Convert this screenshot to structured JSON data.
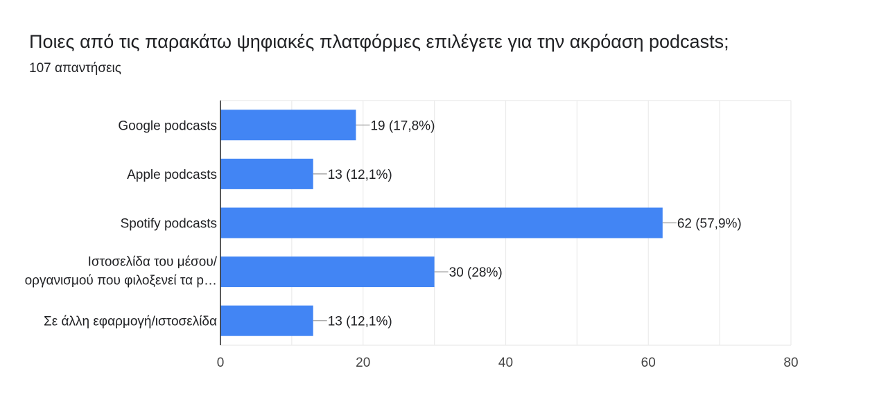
{
  "form": {
    "question_title": "Ποιες από τις παρακάτω ψηφιακές πλατφόρμες επιλέγετε για την ακρόαση podcasts;",
    "response_count": "107 απαντήσεις"
  },
  "chart_data": {
    "type": "bar",
    "orientation": "horizontal",
    "categories": [
      [
        "Google podcasts"
      ],
      [
        "Apple podcasts"
      ],
      [
        "Spotify podcasts"
      ],
      [
        "Ιστοσελίδα του μέσου/",
        "οργανισμού που φιλοξενεί τα p…"
      ],
      [
        "Σε άλλη εφαρμογή/ιστοσελίδα"
      ]
    ],
    "values": [
      19,
      13,
      62,
      30,
      13
    ],
    "data_labels": [
      "19 (17,8%)",
      "13 (12,1%)",
      "62 (57,9%)",
      "30 (28%)",
      "13 (12,1%)"
    ],
    "xlim": [
      0,
      80
    ],
    "x_ticks": [
      0,
      20,
      40,
      60,
      80
    ],
    "grid": true,
    "colors": {
      "bar": "#4285f4",
      "grid": "#ebebeb",
      "axis": "#333333",
      "text": "#202124",
      "tick_text": "#444444",
      "leader": "#999999"
    }
  }
}
